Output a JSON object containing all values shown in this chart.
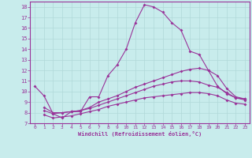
{
  "xlabel": "Windchill (Refroidissement éolien,°C)",
  "xlim": [
    -0.5,
    23.5
  ],
  "ylim": [
    7,
    18.5
  ],
  "xticks": [
    0,
    1,
    2,
    3,
    4,
    5,
    6,
    7,
    8,
    9,
    10,
    11,
    12,
    13,
    14,
    15,
    16,
    17,
    18,
    19,
    20,
    21,
    22,
    23
  ],
  "yticks": [
    7,
    8,
    9,
    10,
    11,
    12,
    13,
    14,
    15,
    16,
    17,
    18
  ],
  "background_color": "#c8ecec",
  "grid_color": "#b0d8d8",
  "line_color": "#993399",
  "line1_x": [
    0,
    1,
    2,
    3,
    4,
    5,
    6,
    7,
    8,
    9,
    10,
    11,
    12,
    13,
    14,
    15,
    16,
    17,
    18,
    19,
    20,
    21,
    22,
    23
  ],
  "line1_y": [
    10.5,
    9.6,
    7.9,
    7.5,
    8.1,
    8.1,
    9.5,
    9.5,
    11.5,
    12.5,
    14.0,
    16.5,
    18.2,
    18.0,
    17.5,
    16.5,
    15.8,
    13.8,
    13.5,
    12.0,
    10.5,
    9.8,
    9.4,
    9.3
  ],
  "line2_x": [
    1,
    2,
    3,
    4,
    5,
    6,
    7,
    8,
    9,
    10,
    11,
    12,
    13,
    14,
    15,
    16,
    17,
    18,
    19,
    20,
    21,
    22,
    23
  ],
  "line2_y": [
    8.5,
    8.0,
    8.0,
    8.1,
    8.2,
    8.5,
    9.0,
    9.3,
    9.6,
    10.0,
    10.4,
    10.7,
    11.0,
    11.3,
    11.6,
    11.9,
    12.1,
    12.2,
    12.0,
    11.5,
    10.3,
    9.5,
    9.3
  ],
  "line3_x": [
    1,
    2,
    3,
    4,
    5,
    6,
    7,
    8,
    9,
    10,
    11,
    12,
    13,
    14,
    15,
    16,
    17,
    18,
    19,
    20,
    21,
    22,
    23
  ],
  "line3_y": [
    8.2,
    7.9,
    8.0,
    8.1,
    8.2,
    8.4,
    8.7,
    9.0,
    9.3,
    9.6,
    9.9,
    10.2,
    10.5,
    10.7,
    10.9,
    11.0,
    11.0,
    10.9,
    10.6,
    10.4,
    9.9,
    9.4,
    9.2
  ],
  "line4_x": [
    1,
    2,
    3,
    4,
    5,
    6,
    7,
    8,
    9,
    10,
    11,
    12,
    13,
    14,
    15,
    16,
    17,
    18,
    19,
    20,
    21,
    22,
    23
  ],
  "line4_y": [
    7.8,
    7.5,
    7.6,
    7.7,
    7.9,
    8.1,
    8.3,
    8.6,
    8.8,
    9.0,
    9.2,
    9.4,
    9.5,
    9.6,
    9.7,
    9.8,
    9.9,
    9.9,
    9.8,
    9.6,
    9.2,
    8.9,
    8.8
  ]
}
